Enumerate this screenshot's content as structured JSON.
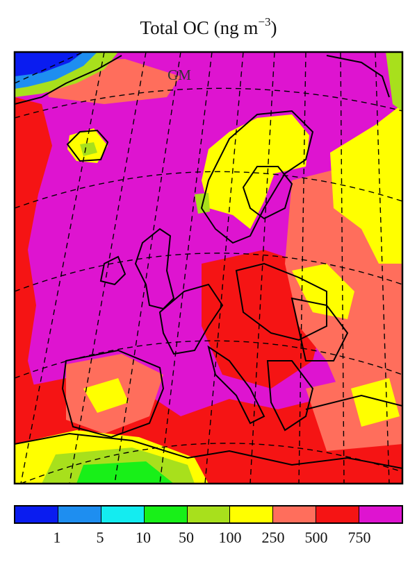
{
  "title": {
    "main": "Total OC (ng m",
    "exponent": "−3",
    "close": ")"
  },
  "map_label": "GM",
  "colors": {
    "bin_1": "#0a1cf0",
    "bin_2": "#1e8ef0",
    "bin_3": "#14ecf0",
    "bin_4": "#18f018",
    "bin_5": "#a8e01c",
    "bin_6": "#ffff00",
    "bin_7": "#ff6e5c",
    "bin_8": "#f51414",
    "bin_9": "#de14d0"
  },
  "colorbar": {
    "bins": [
      "#0a1cf0",
      "#1e8ef0",
      "#14ecf0",
      "#18f018",
      "#a8e01c",
      "#ffff00",
      "#ff6e5c",
      "#f51414",
      "#de14d0"
    ],
    "tick_labels": [
      "1",
      "5",
      "10",
      "50",
      "100",
      "250",
      "500",
      "750"
    ]
  }
}
